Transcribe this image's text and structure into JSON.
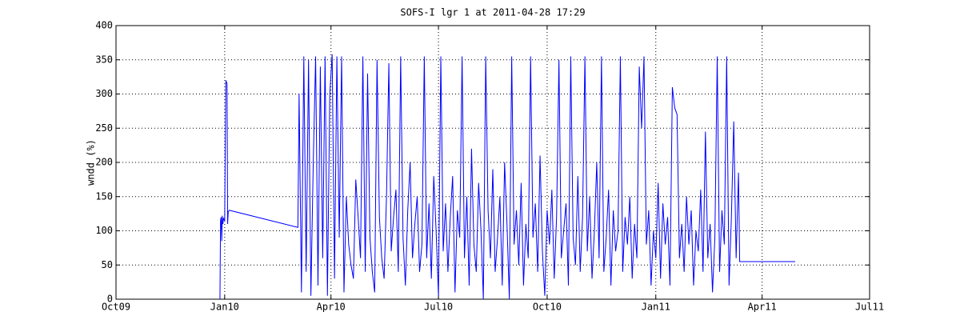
{
  "chart_data": {
    "type": "line",
    "title": "SOFS-I lgr 1 at 2011-04-28 17:29",
    "y_label": "wndd (%)",
    "xlim": [
      0,
      638
    ],
    "xticks": [
      {
        "value": 0,
        "label": "Oct09"
      },
      {
        "value": 92,
        "label": "Jan10"
      },
      {
        "value": 182,
        "label": "Apr10"
      },
      {
        "value": 273,
        "label": "Jul10"
      },
      {
        "value": 365,
        "label": "Oct10"
      },
      {
        "value": 457,
        "label": "Jan11"
      },
      {
        "value": 547,
        "label": "Apr11"
      },
      {
        "value": 638,
        "label": "Jul11"
      }
    ],
    "ylim": [
      0,
      400
    ],
    "yticks": [
      0,
      50,
      100,
      150,
      200,
      250,
      300,
      350,
      400
    ],
    "grid": true,
    "series": [
      {
        "color": "#0000ff",
        "x": [
          88,
          88.5,
          89,
          89.5,
          90,
          90.5,
          91,
          92,
          93,
          94,
          94.5,
          95,
          96,
          154,
          155,
          157,
          159,
          161,
          163,
          165,
          167,
          169,
          171,
          173,
          175,
          177,
          179,
          181,
          183,
          185,
          187,
          189,
          191,
          193,
          195,
          197,
          199,
          201,
          203,
          205,
          207,
          209,
          211,
          213,
          215,
          217,
          219,
          221,
          223,
          225,
          227,
          229,
          231,
          233,
          235,
          237,
          239,
          241,
          243,
          245,
          247,
          249,
          251,
          253,
          255,
          257,
          259,
          261,
          263,
          265,
          267,
          269,
          271,
          273,
          275,
          277,
          279,
          281,
          283,
          285,
          287,
          289,
          291,
          293,
          295,
          297,
          299,
          301,
          303,
          305,
          307,
          309,
          311,
          313,
          315,
          317,
          319,
          321,
          323,
          325,
          327,
          329,
          331,
          333,
          335,
          337,
          339,
          341,
          343,
          345,
          347,
          349,
          351,
          353,
          355,
          357,
          359,
          361,
          363,
          365,
          367,
          369,
          371,
          373,
          375,
          377,
          379,
          381,
          383,
          385,
          387,
          389,
          391,
          393,
          395,
          397,
          399,
          401,
          403,
          405,
          407,
          409,
          411,
          413,
          415,
          417,
          419,
          421,
          423,
          425,
          427,
          429,
          431,
          433,
          435,
          437,
          439,
          441,
          443,
          445,
          447,
          449,
          451,
          453,
          455,
          457,
          459,
          461,
          463,
          465,
          467,
          469,
          471,
          473,
          475,
          477,
          479,
          481,
          483,
          485,
          487,
          489,
          491,
          493,
          495,
          497,
          499,
          501,
          503,
          505,
          507,
          509,
          511,
          513,
          515,
          517,
          519,
          521,
          523,
          525,
          527,
          528,
          575
        ],
        "values": [
          0,
          115,
          120,
          85,
          122,
          110,
          118,
          115,
          320,
          315,
          110,
          128,
          130,
          105,
          300,
          10,
          355,
          40,
          350,
          5,
          200,
          355,
          20,
          340,
          60,
          355,
          5,
          300,
          358,
          30,
          355,
          90,
          355,
          10,
          150,
          80,
          50,
          30,
          175,
          120,
          60,
          355,
          40,
          330,
          90,
          40,
          10,
          350,
          120,
          60,
          30,
          150,
          345,
          70,
          120,
          160,
          40,
          355,
          90,
          20,
          130,
          200,
          60,
          110,
          150,
          40,
          80,
          355,
          60,
          140,
          30,
          180,
          100,
          5,
          355,
          70,
          140,
          40,
          120,
          180,
          10,
          130,
          90,
          355,
          60,
          150,
          20,
          220,
          80,
          40,
          170,
          100,
          0,
          355,
          130,
          60,
          190,
          40,
          90,
          150,
          20,
          200,
          110,
          0,
          355,
          80,
          130,
          50,
          170,
          20,
          110,
          60,
          355,
          90,
          140,
          40,
          210,
          70,
          5,
          130,
          80,
          160,
          30,
          120,
          350,
          60,
          100,
          140,
          20,
          355,
          90,
          50,
          180,
          40,
          120,
          355,
          70,
          150,
          30,
          100,
          200,
          60,
          355,
          40,
          90,
          160,
          20,
          130,
          70,
          100,
          355,
          40,
          120,
          80,
          150,
          30,
          110,
          60,
          340,
          250,
          355,
          80,
          130,
          20,
          100,
          60,
          170,
          30,
          140,
          80,
          120,
          20,
          310,
          280,
          270,
          60,
          110,
          40,
          150,
          80,
          130,
          20,
          100,
          70,
          160,
          40,
          245,
          60,
          110,
          10,
          90,
          355,
          40,
          130,
          80,
          355,
          20,
          120,
          260,
          60,
          185,
          55,
          55
        ]
      }
    ]
  }
}
